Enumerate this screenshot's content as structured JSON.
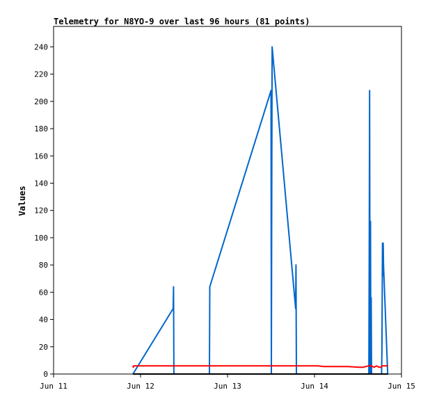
{
  "chart_data": {
    "type": "line",
    "title": "Telemetry for N8YO-9 over last 96 hours (81 points)",
    "xlabel": "",
    "ylabel": "Values",
    "ylim": [
      0,
      255
    ],
    "x_ticks": [
      {
        "x": 0,
        "label": "Jun 11"
      },
      {
        "x": 24,
        "label": "Jun 12"
      },
      {
        "x": 48,
        "label": "Jun 13"
      },
      {
        "x": 72,
        "label": "Jun 14"
      },
      {
        "x": 96,
        "label": "Jun 15"
      }
    ],
    "y_ticks": [
      0,
      20,
      40,
      60,
      80,
      100,
      120,
      140,
      160,
      180,
      200,
      220,
      240
    ],
    "grid": false,
    "legend": "none",
    "series": [
      {
        "color": "#0066cc",
        "points": [
          [
            21.9,
            0
          ],
          [
            33.0,
            48
          ],
          [
            33.1,
            64
          ],
          [
            33.15,
            30
          ],
          [
            33.2,
            0
          ],
          [
            43.0,
            0
          ],
          [
            43.1,
            64
          ],
          [
            60.0,
            208
          ],
          [
            60.1,
            0
          ],
          [
            60.2,
            120
          ],
          [
            60.3,
            240
          ],
          [
            66.8,
            48
          ],
          [
            66.9,
            80
          ],
          [
            67.0,
            0
          ],
          [
            87.0,
            0
          ],
          [
            87.1,
            80
          ],
          [
            87.2,
            208
          ],
          [
            87.35,
            0
          ],
          [
            87.45,
            112
          ],
          [
            87.55,
            0
          ],
          [
            87.65,
            56
          ],
          [
            87.75,
            0
          ],
          [
            90.5,
            0
          ],
          [
            90.6,
            16
          ],
          [
            90.75,
            96
          ],
          [
            90.85,
            72
          ],
          [
            90.95,
            96
          ],
          [
            91.05,
            80
          ],
          [
            92.2,
            0
          ]
        ]
      },
      {
        "color": "#ff0000",
        "points": [
          [
            21.9,
            6
          ],
          [
            22.0,
            5
          ],
          [
            22.1,
            6
          ],
          [
            40,
            6
          ],
          [
            58,
            6
          ],
          [
            60.3,
            6
          ],
          [
            68.4,
            6
          ],
          [
            70,
            6
          ],
          [
            71.5,
            6
          ],
          [
            73.0,
            6
          ],
          [
            74.6,
            5.5
          ],
          [
            81.0,
            5.5
          ],
          [
            84.3,
            5
          ],
          [
            85.5,
            5
          ],
          [
            86.9,
            6
          ],
          [
            87.5,
            6
          ],
          [
            88.5,
            5
          ],
          [
            89.1,
            6
          ],
          [
            89.8,
            5
          ],
          [
            90.4,
            5
          ],
          [
            90.6,
            6
          ],
          [
            91.2,
            6
          ],
          [
            92.3,
            6
          ]
        ]
      },
      {
        "color": "#000000",
        "points": [
          [
            21.9,
            0
          ],
          [
            92.3,
            0
          ]
        ]
      }
    ]
  }
}
